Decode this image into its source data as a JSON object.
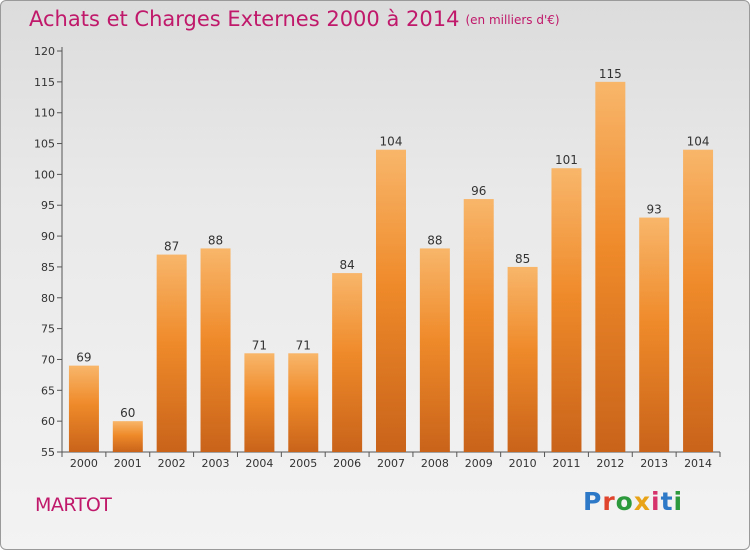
{
  "title": "Achats et Charges Externes 2000 à 2014",
  "subtitle": "(en milliers d'€)",
  "city": "MARTOT",
  "logo": {
    "text": "Proxiti",
    "letter_colors": [
      "#2e78c8",
      "#e0442c",
      "#2c9a3c",
      "#e8a316",
      "#d6336c",
      "#2e78c8",
      "#2c9a3c"
    ]
  },
  "colors": {
    "bar": "#ef8a2a",
    "bar_light": "#f8b66a",
    "bar_dark": "#c9631a",
    "accent": "#c0186a"
  },
  "chart_data": {
    "type": "bar",
    "title": "Achats et Charges Externes 2000 à 2014",
    "subtitle": "(en milliers d'€)",
    "xlabel": "",
    "ylabel": "",
    "categories": [
      "2000",
      "2001",
      "2002",
      "2003",
      "2004",
      "2005",
      "2006",
      "2007",
      "2008",
      "2009",
      "2010",
      "2011",
      "2012",
      "2013",
      "2014"
    ],
    "values": [
      69,
      60,
      87,
      88,
      71,
      71,
      84,
      104,
      88,
      96,
      85,
      101,
      115,
      93,
      104
    ],
    "ylim": [
      55,
      120
    ],
    "yticks": [
      55,
      60,
      65,
      70,
      75,
      80,
      85,
      90,
      95,
      100,
      105,
      110,
      115,
      120
    ],
    "grid": false,
    "legend": "none"
  }
}
